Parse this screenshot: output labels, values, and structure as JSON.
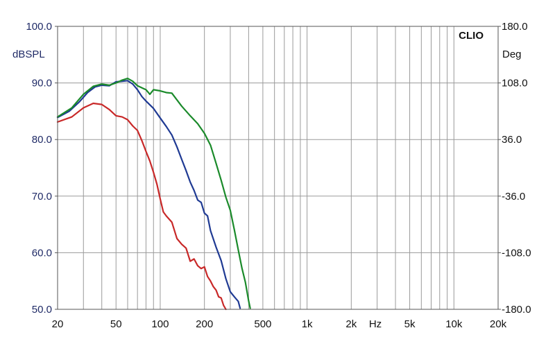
{
  "chart_data": {
    "type": "line",
    "brand": "CLIO",
    "x_scale": "log",
    "xlim": [
      20,
      20000
    ],
    "x_ticks": [
      {
        "value": 20,
        "label": "20"
      },
      {
        "value": 50,
        "label": "50"
      },
      {
        "value": 100,
        "label": "100"
      },
      {
        "value": 200,
        "label": "200"
      },
      {
        "value": 500,
        "label": "500"
      },
      {
        "value": 1000,
        "label": "1k"
      },
      {
        "value": 2000,
        "label": "2k"
      },
      {
        "value": 5000,
        "label": "5k"
      },
      {
        "value": 10000,
        "label": "10k"
      },
      {
        "value": 20000,
        "label": "20k"
      }
    ],
    "x_unit_label": "Hz",
    "y_left": {
      "label": "dBSPL",
      "lim": [
        50,
        100
      ],
      "ticks": [
        "50.0",
        "60.0",
        "70.0",
        "80.0",
        "90.0",
        "100.0"
      ]
    },
    "y_right": {
      "label": "Deg",
      "lim": [
        -180,
        180
      ],
      "ticks": [
        "-180.0",
        "-108.0",
        "-36.0",
        "36.0",
        "108.0",
        "180.0"
      ]
    },
    "grid": true,
    "colors": {
      "grid": "#9a9a9a",
      "frame": "#555555"
    },
    "series": [
      {
        "color": "#1f3a93",
        "points": [
          [
            20,
            83.9
          ],
          [
            24,
            85.0
          ],
          [
            28,
            86.6
          ],
          [
            32,
            88.3
          ],
          [
            36,
            89.3
          ],
          [
            40,
            89.6
          ],
          [
            45,
            89.5
          ],
          [
            50,
            90.2
          ],
          [
            55,
            90.3
          ],
          [
            60,
            90.4
          ],
          [
            65,
            89.8
          ],
          [
            70,
            88.8
          ],
          [
            75,
            87.6
          ],
          [
            80,
            86.8
          ],
          [
            90,
            85.5
          ],
          [
            100,
            83.8
          ],
          [
            110,
            82.3
          ],
          [
            120,
            80.8
          ],
          [
            130,
            78.7
          ],
          [
            140,
            76.5
          ],
          [
            150,
            74.5
          ],
          [
            160,
            72.5
          ],
          [
            170,
            71.0
          ],
          [
            180,
            69.3
          ],
          [
            190,
            68.9
          ],
          [
            200,
            67.0
          ],
          [
            210,
            66.5
          ],
          [
            220,
            63.9
          ],
          [
            240,
            61.0
          ],
          [
            260,
            58.6
          ],
          [
            280,
            55.4
          ],
          [
            300,
            53.1
          ],
          [
            320,
            52.2
          ],
          [
            340,
            51.4
          ],
          [
            350,
            50.2
          ]
        ]
      },
      {
        "color": "#1a8a2a",
        "points": [
          [
            20,
            84.0
          ],
          [
            25,
            85.6
          ],
          [
            30,
            88.0
          ],
          [
            35,
            89.4
          ],
          [
            40,
            89.8
          ],
          [
            45,
            89.6
          ],
          [
            50,
            90.0
          ],
          [
            55,
            90.5
          ],
          [
            60,
            90.8
          ],
          [
            65,
            90.3
          ],
          [
            70,
            89.5
          ],
          [
            80,
            88.8
          ],
          [
            85,
            88.0
          ],
          [
            90,
            88.8
          ],
          [
            100,
            88.6
          ],
          [
            110,
            88.3
          ],
          [
            120,
            88.2
          ],
          [
            130,
            87.0
          ],
          [
            140,
            85.9
          ],
          [
            160,
            84.2
          ],
          [
            180,
            82.8
          ],
          [
            200,
            81.1
          ],
          [
            220,
            79.0
          ],
          [
            240,
            75.8
          ],
          [
            260,
            72.8
          ],
          [
            280,
            69.8
          ],
          [
            300,
            67.5
          ],
          [
            320,
            64.0
          ],
          [
            340,
            60.5
          ],
          [
            360,
            57.3
          ],
          [
            380,
            54.8
          ],
          [
            400,
            51.5
          ],
          [
            410,
            50.2
          ]
        ]
      },
      {
        "color": "#c82828",
        "points": [
          [
            20,
            83.1
          ],
          [
            25,
            84.0
          ],
          [
            30,
            85.6
          ],
          [
            35,
            86.4
          ],
          [
            40,
            86.2
          ],
          [
            45,
            85.3
          ],
          [
            50,
            84.2
          ],
          [
            55,
            84.0
          ],
          [
            60,
            83.5
          ],
          [
            65,
            82.4
          ],
          [
            70,
            81.6
          ],
          [
            75,
            79.8
          ],
          [
            80,
            77.9
          ],
          [
            85,
            76.2
          ],
          [
            90,
            74.2
          ],
          [
            95,
            72.1
          ],
          [
            100,
            69.5
          ],
          [
            105,
            67.2
          ],
          [
            110,
            66.5
          ],
          [
            120,
            65.4
          ],
          [
            130,
            62.5
          ],
          [
            140,
            61.5
          ],
          [
            150,
            60.8
          ],
          [
            160,
            58.5
          ],
          [
            170,
            58.9
          ],
          [
            180,
            57.7
          ],
          [
            190,
            57.2
          ],
          [
            200,
            57.5
          ],
          [
            210,
            55.8
          ],
          [
            220,
            55.0
          ],
          [
            230,
            54.0
          ],
          [
            240,
            53.4
          ],
          [
            250,
            52.2
          ],
          [
            260,
            52.0
          ],
          [
            270,
            50.7
          ],
          [
            280,
            50.0
          ]
        ]
      }
    ]
  }
}
